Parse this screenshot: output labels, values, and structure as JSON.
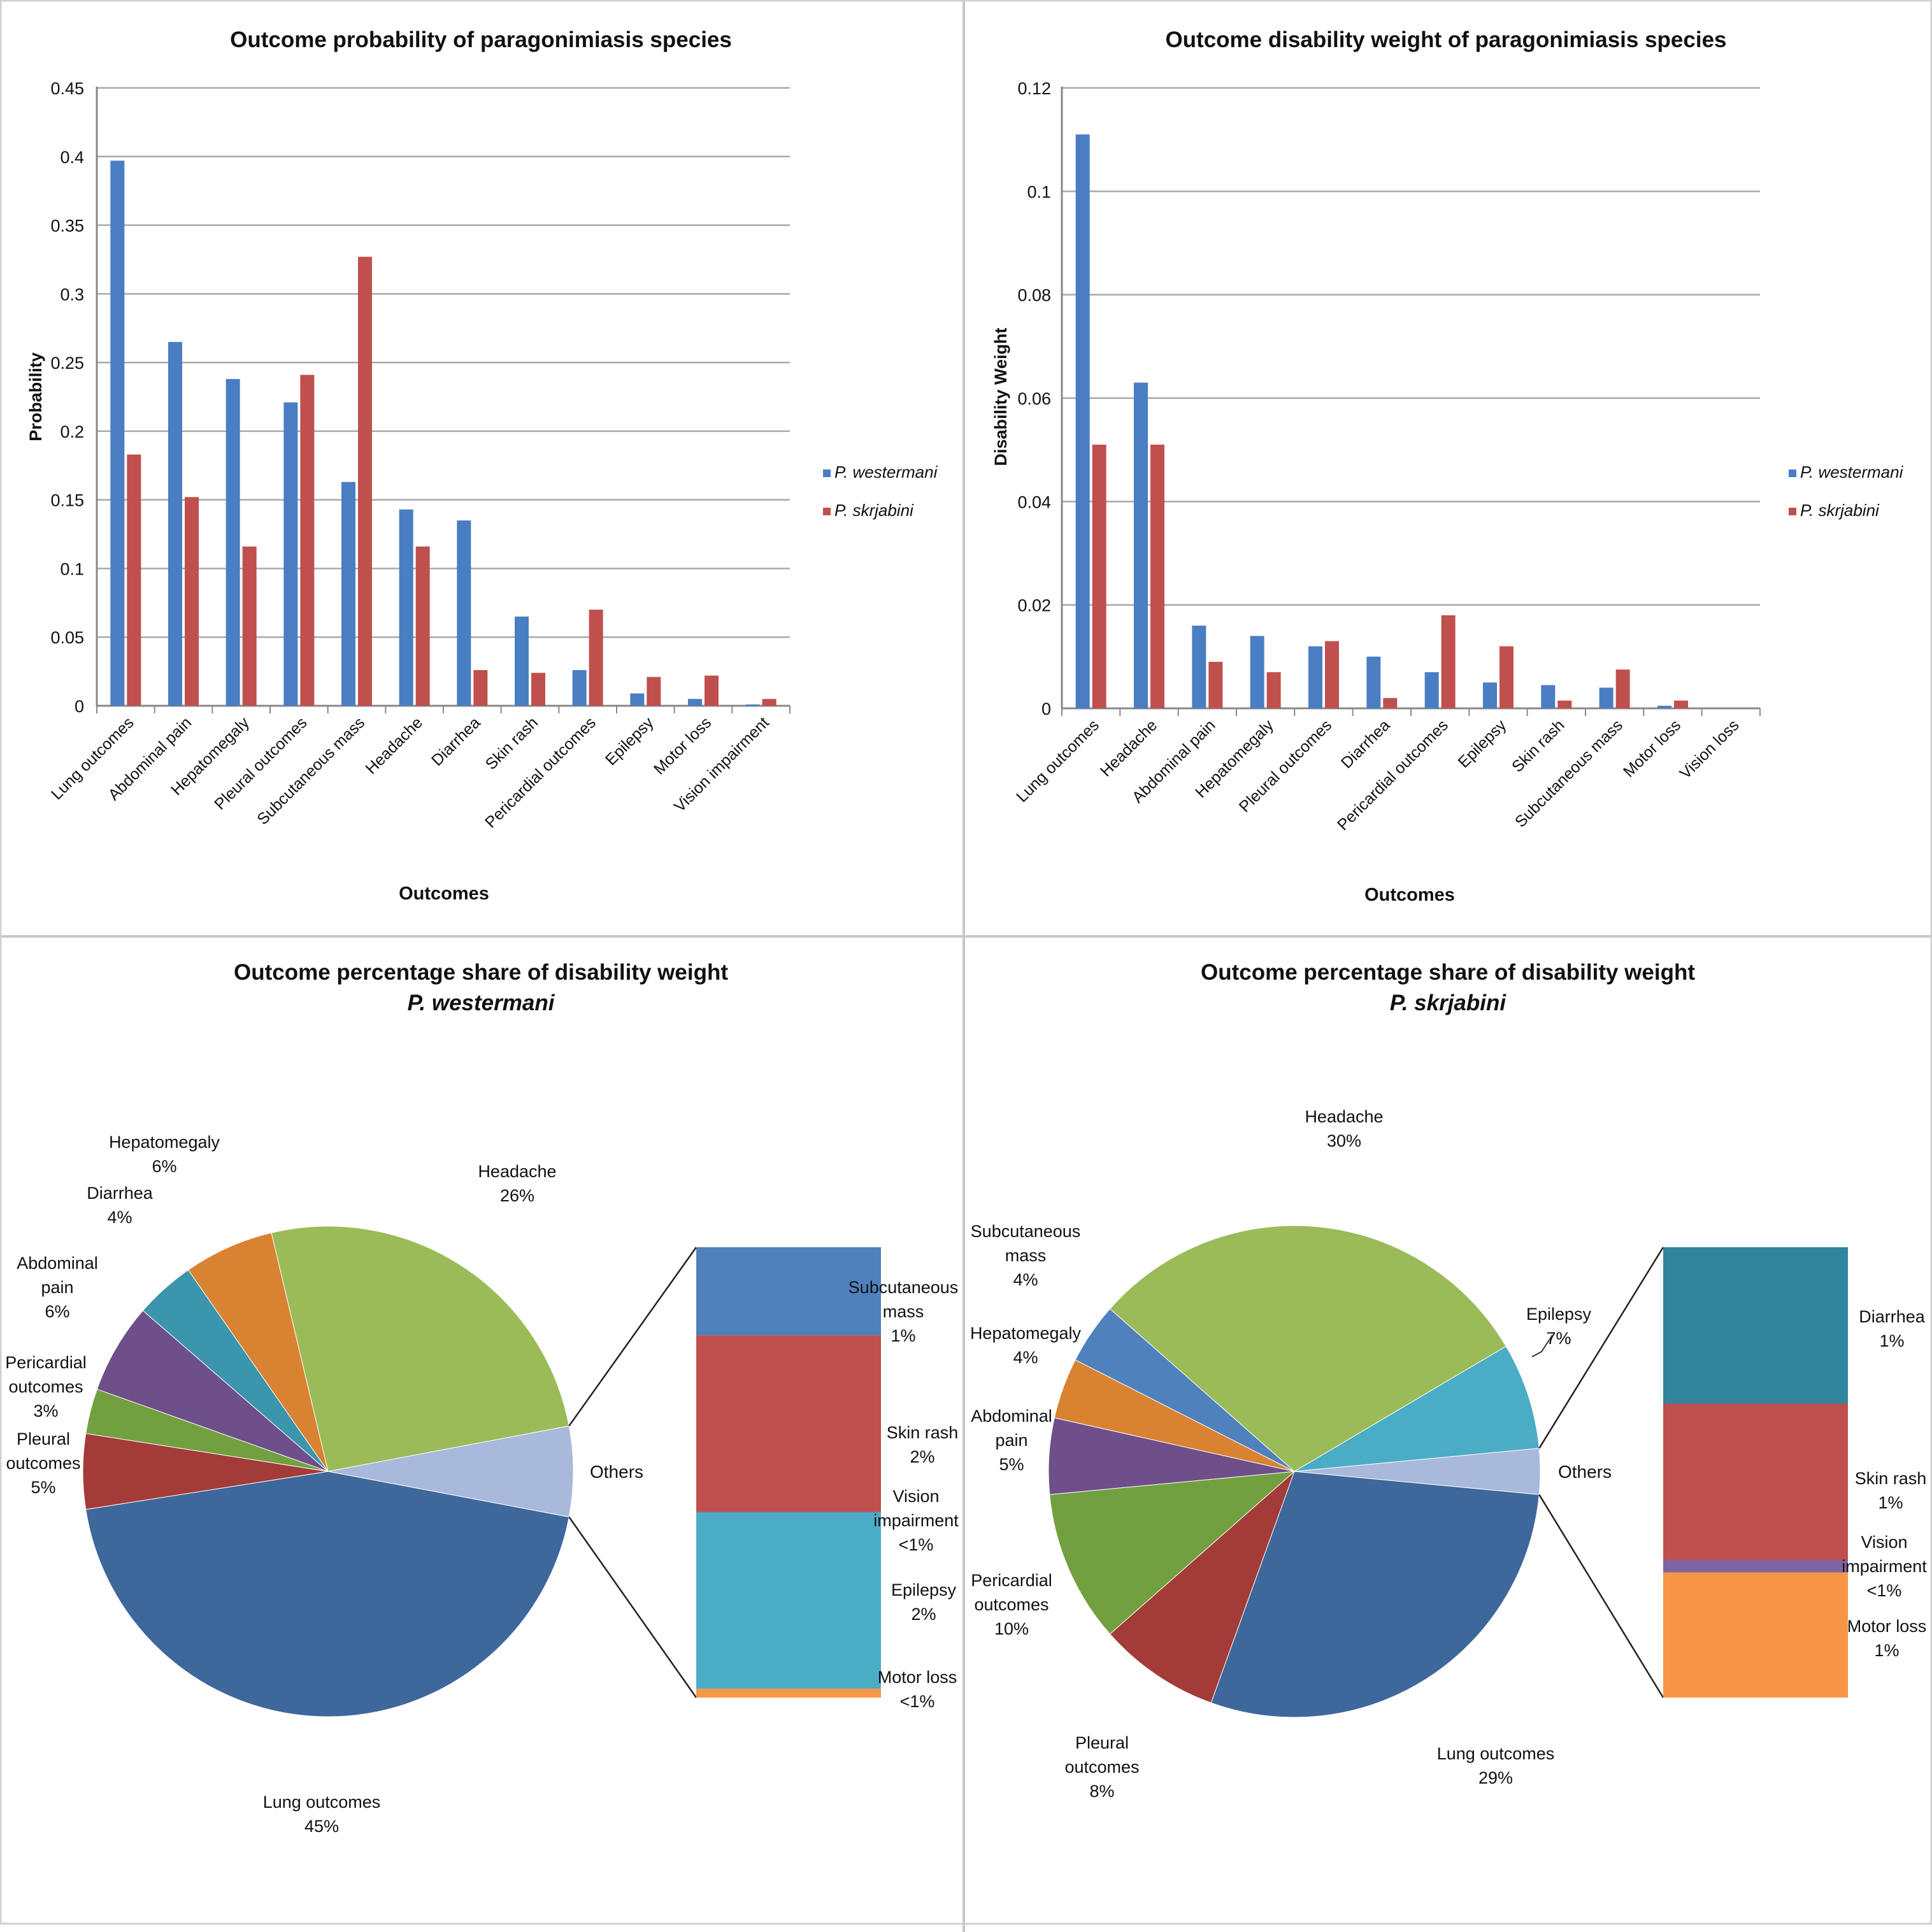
{
  "chart_data": [
    {
      "id": "prob",
      "type": "bar",
      "title": "Outcome probability of paragonimiasis species",
      "xlabel": "Outcomes",
      "ylabel": "Probability",
      "ylim": [
        0,
        0.45
      ],
      "yticks": [
        "0",
        "0.05",
        "0.1",
        "0.15",
        "0.2",
        "0.25",
        "0.3",
        "0.35",
        "0.4",
        "0.45"
      ],
      "yticks_values": [
        0,
        0.05,
        0.1,
        0.15,
        0.2,
        0.25,
        0.3,
        0.35,
        0.4,
        0.45
      ],
      "grid": true,
      "legend": "right",
      "categories": [
        "Lung outcomes",
        "Abdominal pain",
        "Hepatomegaly",
        "Pleural outcomes",
        "Subcutaneous mass",
        "Headache",
        "Diarrhea",
        "Skin rash",
        "Pericardial outcomes",
        "Epilepsy",
        "Motor loss",
        "Vision impairment"
      ],
      "series": [
        {
          "name": "P. westermani",
          "color": "#4a7ec3",
          "values": [
            0.397,
            0.265,
            0.238,
            0.221,
            0.163,
            0.143,
            0.135,
            0.065,
            0.026,
            0.009,
            0.005,
            0.001
          ]
        },
        {
          "name": "P. skrjabini",
          "color": "#c0504d",
          "values": [
            0.183,
            0.152,
            0.116,
            0.241,
            0.327,
            0.116,
            0.026,
            0.024,
            0.07,
            0.021,
            0.022,
            0.005
          ]
        }
      ]
    },
    {
      "id": "dw",
      "type": "bar",
      "title": "Outcome disability weight of paragonimiasis species",
      "xlabel": "Outcomes",
      "ylabel": "Disability Weight",
      "ylim": [
        0,
        0.12
      ],
      "yticks": [
        "0",
        "0.02",
        "0.04",
        "0.06",
        "0.08",
        "0.1",
        "0.12"
      ],
      "yticks_values": [
        0,
        0.02,
        0.04,
        0.06,
        0.08,
        0.1,
        0.12
      ],
      "grid": true,
      "legend": "right",
      "categories": [
        "Lung outcomes",
        "Headache",
        "Abdominal pain",
        "Hepatomegaly",
        "Pleural outcomes",
        "Diarrhea",
        "Pericardial outcomes",
        "Epilepsy",
        "Skin rash",
        "Subcutaneous mass",
        "Motor loss",
        "Vision loss"
      ],
      "series": [
        {
          "name": "P. westermani",
          "color": "#4a7ec3",
          "values": [
            0.111,
            0.063,
            0.016,
            0.014,
            0.012,
            0.01,
            0.007,
            0.005,
            0.0045,
            0.004,
            0.0005,
            0.0
          ]
        },
        {
          "name": "P. skrjabini",
          "color": "#c0504d",
          "values": [
            0.051,
            0.051,
            0.009,
            0.007,
            0.013,
            0.002,
            0.018,
            0.012,
            0.0015,
            0.0075,
            0.0015,
            0.0
          ]
        }
      ]
    },
    {
      "id": "pie_w",
      "type": "pie",
      "title": "Outcome percentage share of disability weight",
      "subtitle": "P. westermani",
      "slices": [
        {
          "name": "Headache",
          "pct_label": "26%",
          "value": 26,
          "color": "#9bbb59"
        },
        {
          "name": "Others",
          "pct_label": "",
          "value": 6,
          "color": "#a9b9db"
        },
        {
          "name": "Lung outcomes",
          "pct_label": "45%",
          "value": 45,
          "color": "#3e679b"
        },
        {
          "name": "Pleural outcomes",
          "pct_label": "5%",
          "value": 5,
          "color": "#a33b38"
        },
        {
          "name": "Pericardial outcomes",
          "pct_label": "3%",
          "value": 3,
          "color": "#72a040"
        },
        {
          "name": "Abdominal pain",
          "pct_label": "6%",
          "value": 6,
          "color": "#6e4f8a"
        },
        {
          "name": "Diarrhea",
          "pct_label": "4%",
          "value": 4,
          "color": "#3b95ad"
        },
        {
          "name": "Hepatomegaly",
          "pct_label": "6%",
          "value": 6,
          "color": "#d98232"
        }
      ],
      "others_breakdown": [
        {
          "name": "Subcutaneous mass",
          "pct_label": "1%",
          "value": 1,
          "color": "#4f81bd"
        },
        {
          "name": "Skin rash",
          "pct_label": "2%",
          "value": 2,
          "color": "#c0504d"
        },
        {
          "name": "Vision impairment",
          "pct_label": "<1%",
          "value": 0.01,
          "color": "#8064a2"
        },
        {
          "name": "Epilepsy",
          "pct_label": "2%",
          "value": 2,
          "color": "#4bacc6"
        },
        {
          "name": "Motor loss",
          "pct_label": "<1%",
          "value": 0.1,
          "color": "#f79646"
        }
      ]
    },
    {
      "id": "pie_s",
      "type": "pie",
      "title": "Outcome percentage share of disability weight",
      "subtitle": "P. skrjabini",
      "slices": [
        {
          "name": "Headache",
          "pct_label": "30%",
          "value": 30,
          "color": "#9bbb59"
        },
        {
          "name": "Epilepsy",
          "pct_label": "7%",
          "value": 7,
          "color": "#4bacc6"
        },
        {
          "name": "Others",
          "pct_label": "",
          "value": 3,
          "color": "#a9b9db"
        },
        {
          "name": "Lung outcomes",
          "pct_label": "29%",
          "value": 29,
          "color": "#3e679b"
        },
        {
          "name": "Pleural outcomes",
          "pct_label": "8%",
          "value": 8,
          "color": "#a33b38"
        },
        {
          "name": "Pericardial outcomes",
          "pct_label": "10%",
          "value": 10,
          "color": "#72a040"
        },
        {
          "name": "Abdominal pain",
          "pct_label": "5%",
          "value": 5,
          "color": "#6e4f8a"
        },
        {
          "name": "Hepatomegaly",
          "pct_label": "4%",
          "value": 4,
          "color": "#d98232"
        },
        {
          "name": "Subcutaneous mass",
          "pct_label": "4%",
          "value": 4,
          "color": "#4f81bd"
        }
      ],
      "others_breakdown": [
        {
          "name": "Diarrhea",
          "pct_label": "1%",
          "value": 1,
          "color": "#31859c"
        },
        {
          "name": "Skin rash",
          "pct_label": "1%",
          "value": 1,
          "color": "#c0504d"
        },
        {
          "name": "Vision impairment",
          "pct_label": "<1%",
          "value": 0.08,
          "color": "#8064a2"
        },
        {
          "name": "Motor loss",
          "pct_label": "1%",
          "value": 0.8,
          "color": "#f79646"
        }
      ]
    }
  ]
}
